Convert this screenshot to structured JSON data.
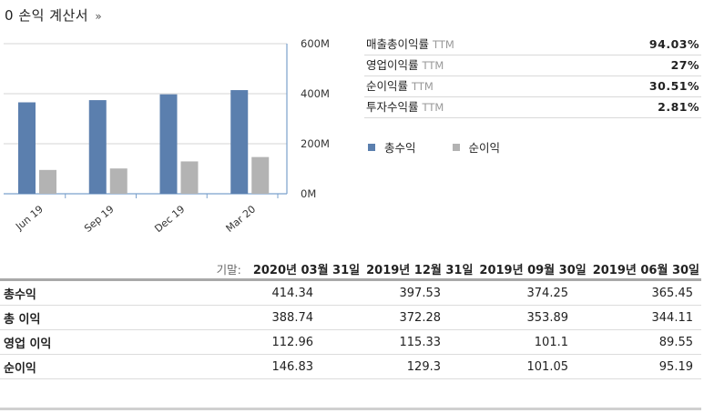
{
  "title": {
    "bullet": "0",
    "text": "손익 계산서",
    "chevron": "»"
  },
  "chart_data": {
    "type": "bar",
    "categories": [
      "Jun 19",
      "Sep 19",
      "Dec 19",
      "Mar 20"
    ],
    "series": [
      {
        "name": "총수익",
        "color": "#5b7fae",
        "values": [
          365.45,
          374.25,
          397.53,
          414.34
        ]
      },
      {
        "name": "순이익",
        "color": "#b3b3b3",
        "values": [
          95.19,
          101.05,
          129.3,
          146.83
        ]
      }
    ],
    "ylim": [
      0,
      600
    ],
    "yticks": [
      "0M",
      "200M",
      "400M",
      "600M"
    ],
    "grid": true
  },
  "ratios": [
    {
      "label": "매출총이익률",
      "ttm": "TTM",
      "value": "94.03%"
    },
    {
      "label": "영업이익률",
      "ttm": "TTM",
      "value": "27%"
    },
    {
      "label": "순이익률",
      "ttm": "TTM",
      "value": "30.51%"
    },
    {
      "label": "투자수익률",
      "ttm": "TTM",
      "value": "2.81%"
    }
  ],
  "legend": [
    {
      "label": "총수익",
      "color": "#5b7fae"
    },
    {
      "label": "순이익",
      "color": "#b3b3b3"
    }
  ],
  "table": {
    "prefix": "기말:",
    "columns": [
      "2020년 03월 31일",
      "2019년 12월 31일",
      "2019년 09월 30일",
      "2019년 06월 30일"
    ],
    "rows": [
      {
        "label": "총수익",
        "values": [
          "414.34",
          "397.53",
          "374.25",
          "365.45"
        ]
      },
      {
        "label": "총 이익",
        "values": [
          "388.74",
          "372.28",
          "353.89",
          "344.11"
        ]
      },
      {
        "label": "영업 이익",
        "values": [
          "112.96",
          "115.33",
          "101.1",
          "89.55"
        ]
      },
      {
        "label": "순이익",
        "values": [
          "146.83",
          "129.3",
          "101.05",
          "95.19"
        ]
      }
    ]
  }
}
